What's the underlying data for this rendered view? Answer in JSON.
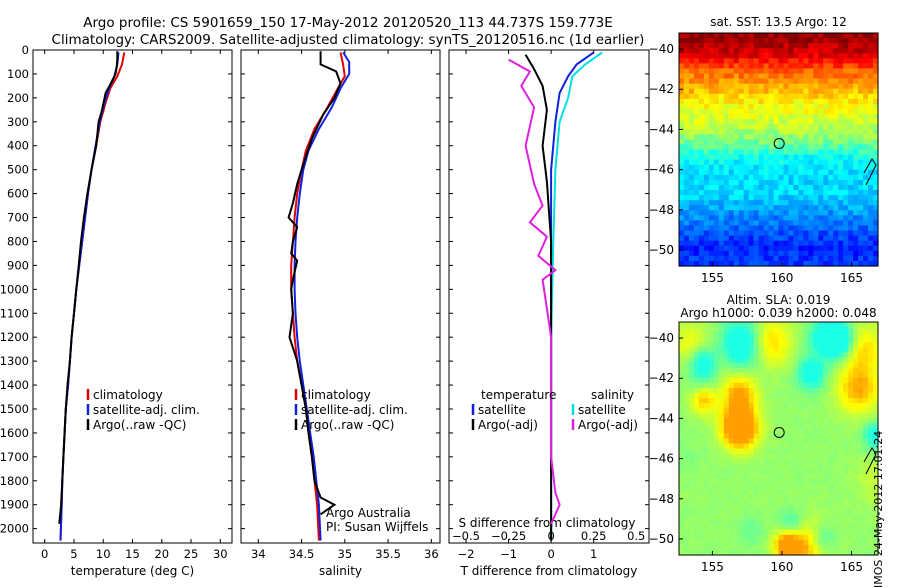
{
  "header": {
    "line1": "Argo profile: CS 5901659_150 17-May-2012 20120520_113 44.737S 159.773E",
    "line2": "Climatology: CARS2009. Satellite-adjusted climatology: synTS_20120516.nc (1d earlier)"
  },
  "credit": "IMOS 24-May-2012 17:01:24",
  "colors": {
    "climatology": "#e00000",
    "satellite": "#1020e0",
    "argo": "#000000",
    "sat_salinity": "#00e0e0",
    "argo_salinity_diff": "#e020e0"
  },
  "depth_axis": {
    "ticks": [
      0,
      100,
      200,
      300,
      400,
      500,
      600,
      700,
      800,
      900,
      1000,
      1100,
      1200,
      1300,
      1400,
      1500,
      1600,
      1700,
      1800,
      1900,
      2000
    ],
    "ylim": [
      2060,
      0
    ]
  },
  "chart_data": [
    {
      "type": "line",
      "id": "temperature",
      "xlabel": "temperature (deg C)",
      "xlim": [
        -2,
        32
      ],
      "xticks": [
        0,
        5,
        10,
        15,
        20,
        25,
        30
      ],
      "legend": {
        "climatology": "climatology",
        "satellite": "satellite-adj. clim.",
        "argo": "Argo(..raw -QC)"
      },
      "series": [
        {
          "key": "climatology",
          "points": [
            [
              13.6,
              10
            ],
            [
              13.2,
              60
            ],
            [
              12.4,
              110
            ],
            [
              11.2,
              160
            ],
            [
              10.4,
              220
            ],
            [
              9.5,
              300
            ],
            [
              8.8,
              400
            ],
            [
              8.0,
              500
            ],
            [
              7.4,
              600
            ],
            [
              6.9,
              700
            ],
            [
              6.4,
              800
            ],
            [
              5.9,
              900
            ],
            [
              5.4,
              1000
            ],
            [
              5.0,
              1100
            ],
            [
              4.6,
              1200
            ],
            [
              4.3,
              1300
            ],
            [
              4.0,
              1400
            ],
            [
              3.6,
              1500
            ],
            [
              3.4,
              1600
            ],
            [
              3.2,
              1700
            ],
            [
              3.0,
              1800
            ],
            [
              2.9,
              1900
            ],
            [
              2.7,
              2050
            ]
          ]
        },
        {
          "key": "satellite",
          "points": [
            [
              12.6,
              10
            ],
            [
              12.4,
              60
            ],
            [
              11.9,
              110
            ],
            [
              11.0,
              160
            ],
            [
              10.2,
              220
            ],
            [
              9.4,
              300
            ],
            [
              8.7,
              400
            ],
            [
              8.0,
              500
            ],
            [
              7.4,
              600
            ],
            [
              6.9,
              700
            ],
            [
              6.4,
              800
            ],
            [
              5.9,
              900
            ],
            [
              5.4,
              1000
            ],
            [
              5.0,
              1100
            ],
            [
              4.6,
              1200
            ],
            [
              4.3,
              1300
            ],
            [
              4.0,
              1400
            ],
            [
              3.6,
              1500
            ],
            [
              3.4,
              1600
            ],
            [
              3.2,
              1700
            ],
            [
              3.0,
              1800
            ],
            [
              2.9,
              1900
            ],
            [
              2.7,
              2050
            ]
          ]
        },
        {
          "key": "argo",
          "points": [
            [
              12.4,
              5
            ],
            [
              12.4,
              40
            ],
            [
              12.3,
              70
            ],
            [
              12.1,
              100
            ],
            [
              11.3,
              140
            ],
            [
              10.4,
              180
            ],
            [
              9.7,
              260
            ],
            [
              9.2,
              300
            ],
            [
              8.8,
              400
            ],
            [
              8.0,
              500
            ],
            [
              7.3,
              600
            ],
            [
              6.7,
              700
            ],
            [
              6.2,
              800
            ],
            [
              5.8,
              900
            ],
            [
              5.4,
              1000
            ],
            [
              5.0,
              1100
            ],
            [
              4.6,
              1200
            ],
            [
              4.3,
              1300
            ],
            [
              3.9,
              1400
            ],
            [
              3.6,
              1500
            ],
            [
              3.4,
              1600
            ],
            [
              3.2,
              1700
            ],
            [
              3.0,
              1800
            ],
            [
              2.8,
              1900
            ],
            [
              2.5,
              1980
            ]
          ]
        }
      ]
    },
    {
      "type": "line",
      "id": "salinity",
      "xlabel": "salinity",
      "xlim": [
        33.8,
        36.1
      ],
      "xticks": [
        34,
        34.5,
        35,
        35.5,
        36
      ],
      "xtick_labels": [
        "34",
        "34.5",
        "35",
        "35.5",
        "36"
      ],
      "legend": {
        "climatology": "climatology",
        "satellite": "satellite-adj. clim.",
        "argo": "Argo(..raw -QC)"
      },
      "annotations": [
        "Argo Australia",
        "PI: Susan Wijffels"
      ],
      "series": [
        {
          "key": "climatology",
          "points": [
            [
              34.95,
              10
            ],
            [
              34.98,
              60
            ],
            [
              35.0,
              110
            ],
            [
              34.92,
              160
            ],
            [
              34.8,
              240
            ],
            [
              34.65,
              330
            ],
            [
              34.55,
              420
            ],
            [
              34.5,
              500
            ],
            [
              34.45,
              600
            ],
            [
              34.42,
              700
            ],
            [
              34.4,
              800
            ],
            [
              34.38,
              900
            ],
            [
              34.38,
              1000
            ],
            [
              34.4,
              1100
            ],
            [
              34.42,
              1200
            ],
            [
              34.45,
              1300
            ],
            [
              34.5,
              1400
            ],
            [
              34.55,
              1500
            ],
            [
              34.58,
              1600
            ],
            [
              34.62,
              1700
            ],
            [
              34.65,
              1800
            ],
            [
              34.68,
              1900
            ],
            [
              34.7,
              2050
            ]
          ]
        },
        {
          "key": "satellite",
          "points": [
            [
              34.98,
              10
            ],
            [
              35.05,
              50
            ],
            [
              35.05,
              100
            ],
            [
              34.95,
              160
            ],
            [
              34.85,
              240
            ],
            [
              34.7,
              330
            ],
            [
              34.58,
              420
            ],
            [
              34.52,
              500
            ],
            [
              34.48,
              600
            ],
            [
              34.45,
              700
            ],
            [
              34.43,
              800
            ],
            [
              34.42,
              900
            ],
            [
              34.42,
              1000
            ],
            [
              34.43,
              1100
            ],
            [
              34.45,
              1200
            ],
            [
              34.48,
              1300
            ],
            [
              34.52,
              1400
            ],
            [
              34.56,
              1500
            ],
            [
              34.6,
              1600
            ],
            [
              34.64,
              1700
            ],
            [
              34.67,
              1800
            ],
            [
              34.7,
              1900
            ],
            [
              34.72,
              2050
            ]
          ]
        },
        {
          "key": "argo",
          "points": [
            [
              34.72,
              5
            ],
            [
              34.72,
              60
            ],
            [
              34.9,
              90
            ],
            [
              34.95,
              140
            ],
            [
              34.88,
              200
            ],
            [
              34.75,
              270
            ],
            [
              34.62,
              370
            ],
            [
              34.5,
              500
            ],
            [
              34.45,
              560
            ],
            [
              34.4,
              640
            ],
            [
              34.35,
              700
            ],
            [
              34.45,
              740
            ],
            [
              34.4,
              800
            ],
            [
              34.38,
              850
            ],
            [
              34.45,
              880
            ],
            [
              34.4,
              960
            ],
            [
              34.38,
              1000
            ],
            [
              34.4,
              1100
            ],
            [
              34.36,
              1200
            ],
            [
              34.45,
              1300
            ],
            [
              34.5,
              1400
            ],
            [
              34.55,
              1500
            ],
            [
              34.58,
              1600
            ],
            [
              34.62,
              1700
            ],
            [
              34.65,
              1800
            ],
            [
              34.72,
              1870
            ],
            [
              34.88,
              1900
            ],
            [
              34.72,
              1940
            ]
          ]
        }
      ]
    },
    {
      "type": "line",
      "id": "difference",
      "xlabel": "T difference from climatology",
      "secondary_xlabel": "S difference from climatology",
      "xlim": [
        -2.4,
        2.3
      ],
      "xticks": [
        -2,
        -1,
        0,
        1
      ],
      "xtick_labels": [
        "−2",
        "−1",
        "0",
        "1"
      ],
      "secondary_xticks": [
        -2,
        -1,
        0,
        1,
        2
      ],
      "secondary_xtick_labels": [
        "−0.5",
        "−0.25",
        "0",
        "0.25",
        "0.5"
      ],
      "legend": {
        "temperature": "temperature",
        "salinity": "salinity",
        "satellite": "satellite",
        "argo": "Argo(-adj)"
      },
      "series": [
        {
          "key": "satellite",
          "points": [
            [
              1.0,
              10
            ],
            [
              0.6,
              60
            ],
            [
              0.4,
              110
            ],
            [
              0.2,
              180
            ],
            [
              0.1,
              300
            ],
            [
              0.0,
              500
            ],
            [
              0.0,
              2050
            ]
          ]
        },
        {
          "key": "sat_salinity",
          "points": [
            [
              1.2,
              10
            ],
            [
              0.8,
              60
            ],
            [
              0.5,
              110
            ],
            [
              0.4,
              200
            ],
            [
              0.2,
              300
            ],
            [
              0.1,
              500
            ],
            [
              0.05,
              800
            ],
            [
              0.0,
              1200
            ],
            [
              0.0,
              2050
            ]
          ]
        },
        {
          "key": "argo",
          "points": [
            [
              -0.6,
              20
            ],
            [
              -0.4,
              80
            ],
            [
              -0.2,
              150
            ],
            [
              -0.1,
              250
            ],
            [
              -0.2,
              400
            ],
            [
              -0.1,
              550
            ],
            [
              0.0,
              800
            ],
            [
              0.0,
              2050
            ]
          ]
        },
        {
          "key": "argo_salinity_diff",
          "points": [
            [
              -1.0,
              40
            ],
            [
              -0.5,
              90
            ],
            [
              -0.7,
              150
            ],
            [
              -0.4,
              240
            ],
            [
              -0.6,
              400
            ],
            [
              -0.4,
              560
            ],
            [
              -0.2,
              650
            ],
            [
              -0.5,
              720
            ],
            [
              -0.1,
              780
            ],
            [
              -0.3,
              860
            ],
            [
              0.1,
              920
            ],
            [
              -0.2,
              960
            ],
            [
              0.0,
              1200
            ],
            [
              0.0,
              1700
            ],
            [
              0.1,
              1850
            ],
            [
              0.2,
              1900
            ],
            [
              0.0,
              1980
            ]
          ]
        }
      ]
    },
    {
      "type": "heatmap",
      "id": "sst_map",
      "title": "sat. SST: 13.5 Argo: 12",
      "xlim": [
        152.6,
        166.9
      ],
      "ylim": [
        -50.8,
        -39.2
      ],
      "xticks": [
        155,
        160,
        165
      ],
      "yticks": [
        -40,
        -42,
        -44,
        -46,
        -48,
        -50
      ],
      "float_position": [
        159.8,
        -44.7
      ],
      "colormap": "jet",
      "zonal_profile": [
        0.98,
        0.92,
        0.78,
        0.7,
        0.62,
        0.58,
        0.5,
        0.38,
        0.34,
        0.34,
        0.28,
        0.22,
        0.16,
        0.18
      ]
    },
    {
      "type": "heatmap",
      "id": "sla_map",
      "title": "Altim. SLA: 0.019",
      "subtitle": "Argo h1000: 0.039 h2000: 0.048",
      "xlim": [
        152.6,
        166.9
      ],
      "ylim": [
        -50.8,
        -39.2
      ],
      "xticks": [
        155,
        160,
        165
      ],
      "yticks": [
        -40,
        -42,
        -44,
        -46,
        -48,
        -50
      ],
      "float_position": [
        159.8,
        -44.7
      ],
      "colormap": "jet"
    }
  ]
}
